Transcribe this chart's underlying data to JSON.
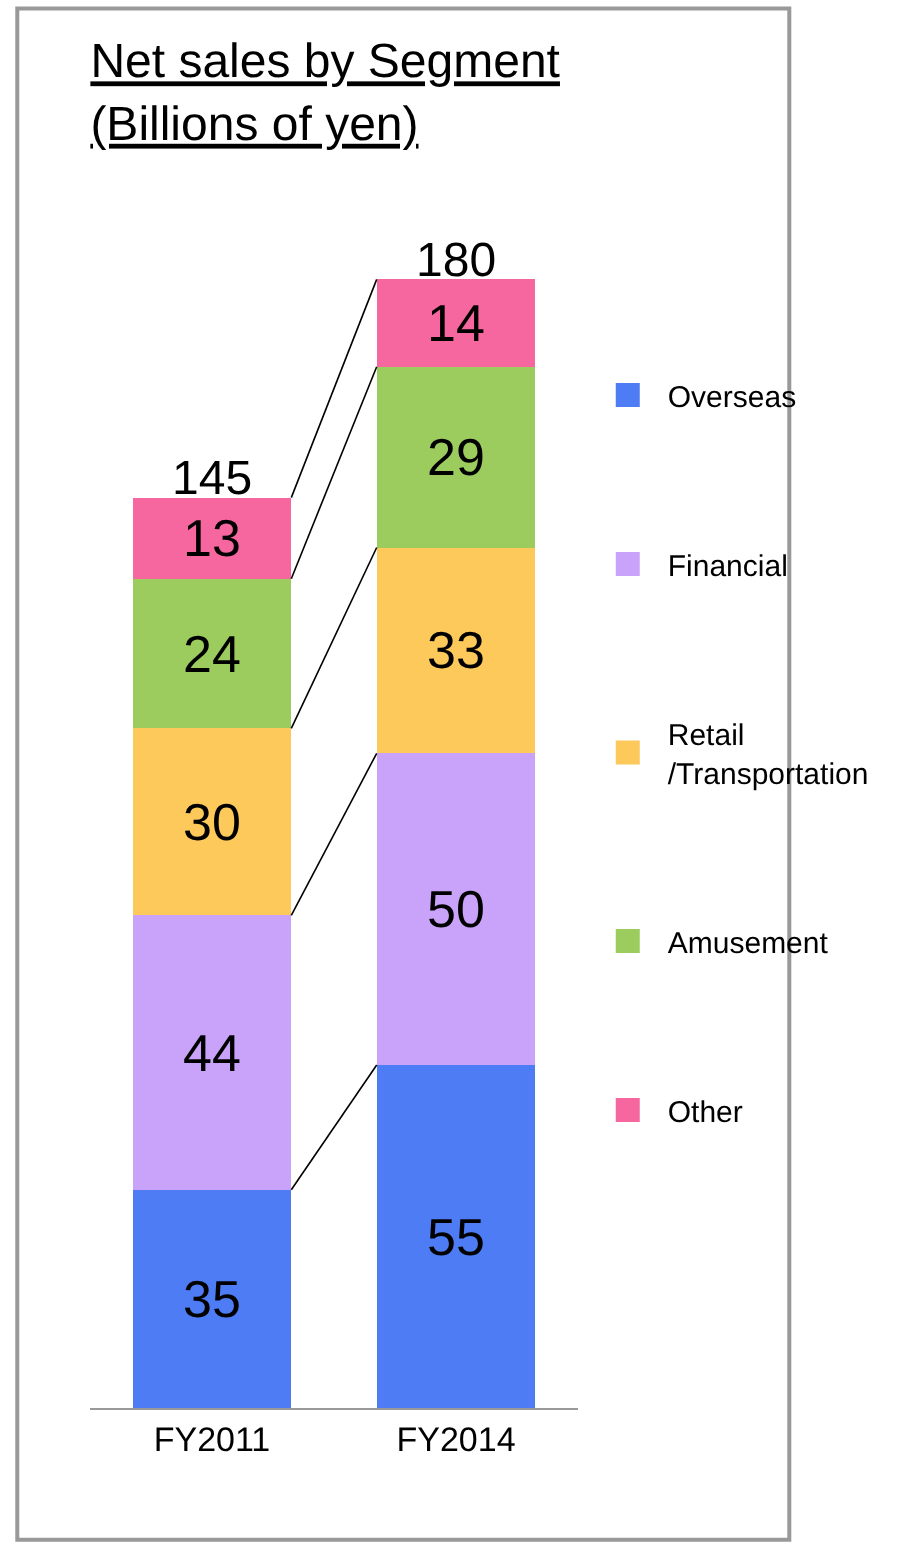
{
  "chart_data": {
    "type": "bar",
    "stacked": true,
    "title": "Net sales by Segment\n(Billions of yen)",
    "categories": [
      "FY2011",
      "FY2014"
    ],
    "series": [
      {
        "name": "Overseas",
        "color": "#4d7cf5",
        "values": [
          35,
          55
        ]
      },
      {
        "name": "Financial",
        "color": "#c9a3fa",
        "values": [
          44,
          50
        ]
      },
      {
        "name": "Retail\n/Transportation",
        "color": "#fcc95a",
        "values": [
          30,
          33
        ]
      },
      {
        "name": "Amusement",
        "color": "#9ccc5e",
        "values": [
          24,
          29
        ]
      },
      {
        "name": "Other",
        "color": "#f5679e",
        "values": [
          13,
          14
        ]
      }
    ],
    "data_labels": true,
    "totals": [
      "145",
      "180"
    ],
    "legend": "right"
  }
}
